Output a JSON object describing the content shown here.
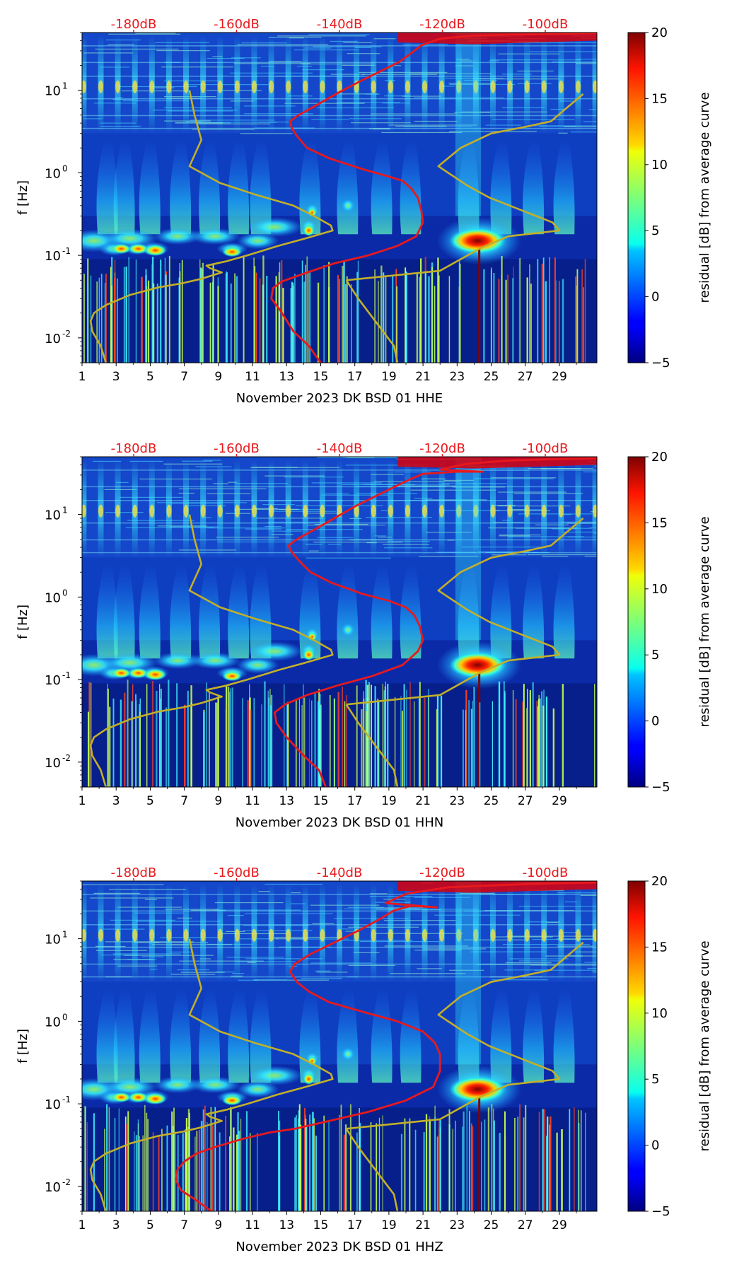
{
  "figure": {
    "colorbar_label": "residual [dB] from average curve",
    "ylabel": "f [Hz]"
  },
  "chart_data": [
    {
      "type": "heatmap",
      "title": "",
      "xlabel": "November 2023 DK BSD 01 HHE",
      "ylabel": "f [Hz]",
      "x_ticks": [
        "1",
        "3",
        "5",
        "7",
        "9",
        "11",
        "13",
        "15",
        "17",
        "19",
        "21",
        "23",
        "25",
        "27",
        "29"
      ],
      "y_ticks": [
        {
          "label": "10",
          "exp": "-2",
          "value": 0.01
        },
        {
          "label": "10",
          "exp": "-1",
          "value": 0.1
        },
        {
          "label": "10",
          "exp": "0",
          "value": 1
        },
        {
          "label": "10",
          "exp": "1",
          "value": 10
        }
      ],
      "xlim": [
        1,
        31.2
      ],
      "ylim": [
        0.005,
        50
      ],
      "top_axis_labels": [
        "-180dB",
        "-160dB",
        "-140dB",
        "-120dB",
        "-100dB"
      ],
      "colorbar": {
        "range": [
          -5,
          20
        ],
        "ticks": [
          "20",
          "15",
          "10",
          "5",
          "0",
          "−5"
        ],
        "label": "residual [dB] from average curve"
      },
      "red_curve": [
        [
          15.0,
          0.005
        ],
        [
          14.3,
          0.008
        ],
        [
          13.4,
          0.012
        ],
        [
          12.6,
          0.022
        ],
        [
          12.1,
          0.03
        ],
        [
          12.2,
          0.04
        ],
        [
          12.7,
          0.048
        ],
        [
          14.0,
          0.06
        ],
        [
          15.8,
          0.08
        ],
        [
          17.8,
          0.1
        ],
        [
          19.5,
          0.13
        ],
        [
          20.6,
          0.17
        ],
        [
          21.0,
          0.25
        ],
        [
          20.9,
          0.35
        ],
        [
          20.7,
          0.5
        ],
        [
          20.3,
          0.65
        ],
        [
          19.8,
          0.8
        ],
        [
          19.0,
          0.9
        ],
        [
          17.5,
          1.1
        ],
        [
          15.5,
          1.5
        ],
        [
          14.2,
          2.0
        ],
        [
          13.6,
          2.8
        ],
        [
          13.3,
          3.5
        ],
        [
          13.2,
          4.2
        ],
        [
          13.7,
          5.0
        ],
        [
          14.7,
          6.5
        ],
        [
          15.9,
          9.0
        ],
        [
          17.2,
          12.5
        ],
        [
          18.5,
          17
        ],
        [
          19.6,
          22
        ],
        [
          20.3,
          28
        ],
        [
          20.9,
          35
        ],
        [
          22.0,
          42
        ],
        [
          24.0,
          46
        ],
        [
          26.0,
          47
        ],
        [
          29.0,
          48
        ],
        [
          31.2,
          49
        ]
      ],
      "olive_curve": [
        [
          2.4,
          0.005
        ],
        [
          2.1,
          0.008
        ],
        [
          1.6,
          0.012
        ],
        [
          1.5,
          0.016
        ],
        [
          1.7,
          0.02
        ],
        [
          2.4,
          0.025
        ],
        [
          3.8,
          0.033
        ],
        [
          5.5,
          0.041
        ],
        [
          6.9,
          0.046
        ],
        [
          8.0,
          0.052
        ],
        [
          9.2,
          0.062
        ],
        [
          8.5,
          0.07
        ],
        [
          8.3,
          0.075
        ],
        [
          9.5,
          0.085
        ],
        [
          10.7,
          0.1
        ],
        [
          12.5,
          0.13
        ],
        [
          14.1,
          0.16
        ],
        [
          15.7,
          0.2
        ],
        [
          15.6,
          0.23
        ],
        [
          14.6,
          0.3
        ],
        [
          13.4,
          0.4
        ],
        [
          11.1,
          0.55
        ],
        [
          9.1,
          0.75
        ],
        [
          7.3,
          1.2
        ],
        [
          8.0,
          2.5
        ],
        [
          7.6,
          5.0
        ],
        [
          7.3,
          10.0
        ],
        null,
        [
          16.5,
          0.05
        ],
        [
          17.2,
          0.03
        ],
        [
          18.3,
          0.015
        ],
        [
          19.3,
          0.008
        ],
        [
          19.5,
          0.005
        ],
        null,
        [
          16.5,
          0.05
        ],
        [
          22.0,
          0.065
        ],
        [
          24.3,
          0.12
        ],
        [
          26.0,
          0.17
        ],
        [
          29.0,
          0.2
        ],
        [
          28.6,
          0.25
        ],
        [
          26.8,
          0.35
        ],
        [
          24.9,
          0.5
        ],
        [
          23.6,
          0.7
        ],
        [
          21.9,
          1.2
        ],
        [
          23.2,
          2.0
        ],
        [
          25.0,
          3.0
        ],
        [
          27.0,
          3.6
        ],
        [
          28.5,
          4.2
        ],
        [
          30.4,
          9.0
        ]
      ]
    },
    {
      "type": "heatmap",
      "title": "",
      "xlabel": "November 2023 DK BSD 01 HHN",
      "ylabel": "f [Hz]",
      "x_ticks": [
        "1",
        "3",
        "5",
        "7",
        "9",
        "11",
        "13",
        "15",
        "17",
        "19",
        "21",
        "23",
        "25",
        "27",
        "29"
      ],
      "y_ticks": [
        {
          "label": "10",
          "exp": "-2",
          "value": 0.01
        },
        {
          "label": "10",
          "exp": "-1",
          "value": 0.1
        },
        {
          "label": "10",
          "exp": "0",
          "value": 1
        },
        {
          "label": "10",
          "exp": "1",
          "value": 10
        }
      ],
      "xlim": [
        1,
        31.2
      ],
      "ylim": [
        0.005,
        50
      ],
      "top_axis_labels": [
        "-180dB",
        "-160dB",
        "-140dB",
        "-120dB",
        "-100dB"
      ],
      "colorbar": {
        "range": [
          -5,
          20
        ],
        "ticks": [
          "20",
          "15",
          "10",
          "5",
          "0",
          "−5"
        ],
        "label": "residual [dB] from average curve"
      },
      "red_curve": [
        [
          15.3,
          0.005
        ],
        [
          14.9,
          0.008
        ],
        [
          14.0,
          0.012
        ],
        [
          13.0,
          0.02
        ],
        [
          12.4,
          0.03
        ],
        [
          12.3,
          0.04
        ],
        [
          12.9,
          0.05
        ],
        [
          14.2,
          0.065
        ],
        [
          16.0,
          0.085
        ],
        [
          18.0,
          0.11
        ],
        [
          19.8,
          0.15
        ],
        [
          20.7,
          0.22
        ],
        [
          21.0,
          0.3
        ],
        [
          20.8,
          0.45
        ],
        [
          20.5,
          0.6
        ],
        [
          20.0,
          0.75
        ],
        [
          19.0,
          0.9
        ],
        [
          17.4,
          1.1
        ],
        [
          15.6,
          1.5
        ],
        [
          14.4,
          2.0
        ],
        [
          13.7,
          2.8
        ],
        [
          13.3,
          3.5
        ],
        [
          13.1,
          4.2
        ],
        [
          13.6,
          5.0
        ],
        [
          14.6,
          6.5
        ],
        [
          15.8,
          9.0
        ],
        [
          17.0,
          12.5
        ],
        [
          18.3,
          17
        ],
        [
          19.4,
          22
        ],
        [
          20.3,
          27
        ],
        [
          21.0,
          31
        ],
        [
          23.0,
          33
        ],
        [
          24.5,
          33
        ],
        [
          22.0,
          35
        ],
        [
          23.5,
          41
        ],
        [
          26.0,
          45
        ],
        [
          29.0,
          47
        ],
        [
          31.2,
          48
        ]
      ],
      "olive_curve": [
        [
          2.4,
          0.005
        ],
        [
          2.1,
          0.008
        ],
        [
          1.6,
          0.012
        ],
        [
          1.5,
          0.016
        ],
        [
          1.7,
          0.02
        ],
        [
          2.4,
          0.025
        ],
        [
          3.8,
          0.033
        ],
        [
          5.5,
          0.041
        ],
        [
          6.9,
          0.046
        ],
        [
          8.0,
          0.052
        ],
        [
          9.2,
          0.062
        ],
        [
          8.5,
          0.07
        ],
        [
          8.3,
          0.075
        ],
        [
          9.5,
          0.085
        ],
        [
          10.7,
          0.1
        ],
        [
          12.5,
          0.13
        ],
        [
          14.1,
          0.16
        ],
        [
          15.7,
          0.2
        ],
        [
          15.6,
          0.23
        ],
        [
          14.6,
          0.3
        ],
        [
          13.4,
          0.4
        ],
        [
          11.1,
          0.55
        ],
        [
          9.1,
          0.75
        ],
        [
          7.3,
          1.2
        ],
        [
          8.0,
          2.5
        ],
        [
          7.6,
          5.0
        ],
        [
          7.3,
          10.0
        ],
        null,
        [
          16.5,
          0.05
        ],
        [
          17.2,
          0.03
        ],
        [
          18.3,
          0.015
        ],
        [
          19.3,
          0.008
        ],
        [
          19.5,
          0.005
        ],
        null,
        [
          16.5,
          0.05
        ],
        [
          22.0,
          0.065
        ],
        [
          24.3,
          0.12
        ],
        [
          26.0,
          0.17
        ],
        [
          29.0,
          0.2
        ],
        [
          28.6,
          0.25
        ],
        [
          26.8,
          0.35
        ],
        [
          24.9,
          0.5
        ],
        [
          23.6,
          0.7
        ],
        [
          21.9,
          1.2
        ],
        [
          23.2,
          2.0
        ],
        [
          25.0,
          3.0
        ],
        [
          27.0,
          3.6
        ],
        [
          28.5,
          4.2
        ],
        [
          30.4,
          9.0
        ]
      ]
    },
    {
      "type": "heatmap",
      "title": "",
      "xlabel": "November 2023 DK BSD 01 HHZ",
      "ylabel": "f [Hz]",
      "x_ticks": [
        "1",
        "3",
        "5",
        "7",
        "9",
        "11",
        "13",
        "15",
        "17",
        "19",
        "21",
        "23",
        "25",
        "27",
        "29"
      ],
      "y_ticks": [
        {
          "label": "10",
          "exp": "-2",
          "value": 0.01
        },
        {
          "label": "10",
          "exp": "-1",
          "value": 0.1
        },
        {
          "label": "10",
          "exp": "0",
          "value": 1
        },
        {
          "label": "10",
          "exp": "1",
          "value": 10
        }
      ],
      "xlim": [
        1,
        31.2
      ],
      "ylim": [
        0.005,
        50
      ],
      "top_axis_labels": [
        "-180dB",
        "-160dB",
        "-140dB",
        "-120dB",
        "-100dB"
      ],
      "colorbar": {
        "range": [
          -5,
          20
        ],
        "ticks": [
          "20",
          "15",
          "10",
          "5",
          "0",
          "−5"
        ],
        "label": "residual [dB] from average curve"
      },
      "red_curve": [
        [
          8.6,
          0.005
        ],
        [
          7.6,
          0.007
        ],
        [
          6.8,
          0.009
        ],
        [
          6.5,
          0.012
        ],
        [
          6.6,
          0.016
        ],
        [
          7.0,
          0.02
        ],
        [
          7.7,
          0.025
        ],
        [
          8.8,
          0.03
        ],
        [
          10.5,
          0.038
        ],
        [
          12.0,
          0.045
        ],
        [
          13.5,
          0.05
        ],
        [
          15.5,
          0.062
        ],
        [
          17.8,
          0.08
        ],
        [
          20.0,
          0.11
        ],
        [
          21.6,
          0.16
        ],
        [
          22.0,
          0.25
        ],
        [
          22.0,
          0.4
        ],
        [
          21.7,
          0.55
        ],
        [
          21.0,
          0.75
        ],
        [
          19.5,
          1.0
        ],
        [
          17.5,
          1.3
        ],
        [
          15.5,
          1.7
        ],
        [
          14.3,
          2.3
        ],
        [
          13.6,
          3.0
        ],
        [
          13.2,
          4.0
        ],
        [
          13.5,
          5.0
        ],
        [
          14.4,
          6.5
        ],
        [
          15.8,
          9.0
        ],
        [
          17.2,
          12.5
        ],
        [
          18.4,
          17
        ],
        [
          19.3,
          22
        ],
        [
          20.3,
          25
        ],
        [
          21.8,
          24
        ],
        [
          18.8,
          27
        ],
        [
          20.0,
          35
        ],
        [
          22.5,
          42
        ],
        [
          26.0,
          45
        ],
        [
          29.0,
          47
        ],
        [
          31.2,
          48
        ]
      ],
      "olive_curve": [
        [
          2.4,
          0.005
        ],
        [
          2.1,
          0.008
        ],
        [
          1.6,
          0.012
        ],
        [
          1.5,
          0.016
        ],
        [
          1.7,
          0.02
        ],
        [
          2.4,
          0.025
        ],
        [
          3.8,
          0.033
        ],
        [
          5.5,
          0.041
        ],
        [
          6.9,
          0.046
        ],
        [
          8.0,
          0.052
        ],
        [
          9.2,
          0.062
        ],
        [
          8.5,
          0.07
        ],
        [
          8.3,
          0.075
        ],
        [
          9.5,
          0.085
        ],
        [
          10.7,
          0.1
        ],
        [
          12.5,
          0.13
        ],
        [
          14.1,
          0.16
        ],
        [
          15.7,
          0.2
        ],
        [
          15.6,
          0.23
        ],
        [
          14.6,
          0.3
        ],
        [
          13.4,
          0.4
        ],
        [
          11.1,
          0.55
        ],
        [
          9.1,
          0.75
        ],
        [
          7.3,
          1.2
        ],
        [
          8.0,
          2.5
        ],
        [
          7.6,
          5.0
        ],
        [
          7.3,
          10.0
        ],
        null,
        [
          16.5,
          0.05
        ],
        [
          17.2,
          0.03
        ],
        [
          18.3,
          0.015
        ],
        [
          19.3,
          0.008
        ],
        [
          19.5,
          0.005
        ],
        null,
        [
          16.5,
          0.05
        ],
        [
          22.0,
          0.065
        ],
        [
          24.3,
          0.12
        ],
        [
          26.0,
          0.17
        ],
        [
          29.0,
          0.2
        ],
        [
          28.6,
          0.25
        ],
        [
          26.8,
          0.35
        ],
        [
          24.9,
          0.5
        ],
        [
          23.6,
          0.7
        ],
        [
          21.9,
          1.2
        ],
        [
          23.2,
          2.0
        ],
        [
          25.0,
          3.0
        ],
        [
          27.0,
          3.6
        ],
        [
          28.5,
          4.2
        ],
        [
          30.4,
          9.0
        ]
      ]
    }
  ],
  "colors": {
    "red_curve": "#e8191d",
    "olive_curve": "#c2b02a",
    "top_labels": "#e8191d",
    "heatmap_base": "#0b2aa8",
    "axis": "#000000"
  }
}
